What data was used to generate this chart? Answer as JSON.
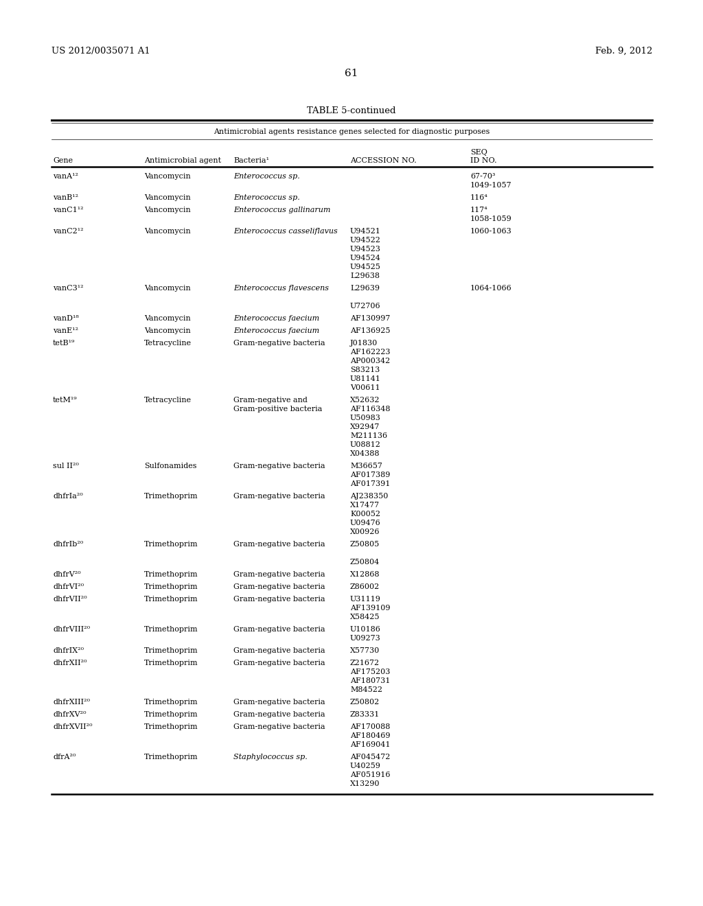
{
  "page_number": "61",
  "patent_number": "US 2012/0035071 A1",
  "patent_date": "Feb. 9, 2012",
  "table_title": "TABLE 5-continued",
  "table_subtitle": "Antimicrobial agents resistance genes selected for diagnostic purposes",
  "rows": [
    {
      "gene": "vanA¹²",
      "antimicrobial": "Vancomycin",
      "bacteria": "Enterococcus sp.",
      "italic": true,
      "accessions": [],
      "seq_id": [
        "67-70³",
        "1049-1057"
      ]
    },
    {
      "gene": "vanB¹²",
      "antimicrobial": "Vancomycin",
      "bacteria": "Enterococcus sp.",
      "italic": true,
      "accessions": [],
      "seq_id": [
        "116⁴"
      ]
    },
    {
      "gene": "vanC1¹²",
      "antimicrobial": "Vancomycin",
      "bacteria": "Enterococcus gallinarum",
      "italic": true,
      "accessions": [],
      "seq_id": [
        "117⁴",
        "1058-1059"
      ]
    },
    {
      "gene": "vanC2¹²",
      "antimicrobial": "Vancomycin",
      "bacteria": "Enterococcus casseliflavus",
      "italic": true,
      "accessions": [
        "U94521",
        "U94522",
        "U94523",
        "U94524",
        "U94525",
        "L29638"
      ],
      "seq_id": [
        "1060-1063"
      ]
    },
    {
      "gene": "vanC3¹²",
      "antimicrobial": "Vancomycin",
      "bacteria": "Enterococcus flavescens",
      "italic": true,
      "accessions": [
        "L29639",
        "",
        "U72706"
      ],
      "seq_id": [
        "1064-1066"
      ]
    },
    {
      "gene": "vanD¹⁸",
      "antimicrobial": "Vancomycin",
      "bacteria": "Enterococcus faecium",
      "italic": true,
      "accessions": [
        "AF130997"
      ],
      "seq_id": []
    },
    {
      "gene": "vanE¹²",
      "antimicrobial": "Vancomycin",
      "bacteria": "Enterococcus faecium",
      "italic": true,
      "accessions": [
        "AF136925"
      ],
      "seq_id": []
    },
    {
      "gene": "tetB¹⁹",
      "antimicrobial": "Tetracycline",
      "bacteria": "Gram-negative bacteria",
      "italic": false,
      "accessions": [
        "J01830",
        "AF162223",
        "AP000342",
        "S83213",
        "U81141",
        "V00611"
      ],
      "seq_id": []
    },
    {
      "gene": "tetM¹⁹",
      "antimicrobial": "Tetracycline",
      "bacteria": "Gram-negative and",
      "bacteria2": "Gram-positive bacteria",
      "italic": false,
      "accessions": [
        "X52632",
        "AF116348",
        "U50983",
        "X92947",
        "M211136",
        "U08812",
        "X04388"
      ],
      "seq_id": []
    },
    {
      "gene": "sul II²⁰",
      "antimicrobial": "Sulfonamides",
      "bacteria": "Gram-negative bacteria",
      "italic": false,
      "accessions": [
        "M36657",
        "AF017389",
        "AF017391"
      ],
      "seq_id": []
    },
    {
      "gene": "dhfrIa²⁰",
      "antimicrobial": "Trimethoprim",
      "bacteria": "Gram-negative bacteria",
      "italic": false,
      "accessions": [
        "AJ238350",
        "X17477",
        "K00052",
        "U09476",
        "X00926"
      ],
      "seq_id": []
    },
    {
      "gene": "dhfrIb²⁰",
      "antimicrobial": "Trimethoprim",
      "bacteria": "Gram-negative bacteria",
      "italic": false,
      "accessions": [
        "Z50805",
        "",
        "Z50804"
      ],
      "seq_id": []
    },
    {
      "gene": "dhfrV²⁰",
      "antimicrobial": "Trimethoprim",
      "bacteria": "Gram-negative bacteria",
      "italic": false,
      "accessions": [
        "X12868"
      ],
      "seq_id": []
    },
    {
      "gene": "dhfrVI²⁰",
      "antimicrobial": "Trimethoprim",
      "bacteria": "Gram-negative bacteria",
      "italic": false,
      "accessions": [
        "Z86002"
      ],
      "seq_id": []
    },
    {
      "gene": "dhfrVII²⁰",
      "antimicrobial": "Trimethoprim",
      "bacteria": "Gram-negative bacteria",
      "italic": false,
      "accessions": [
        "U31119",
        "AF139109",
        "X58425"
      ],
      "seq_id": []
    },
    {
      "gene": "dhfrVIII²⁰",
      "antimicrobial": "Trimethoprim",
      "bacteria": "Gram-negative bacteria",
      "italic": false,
      "accessions": [
        "U10186",
        "U09273"
      ],
      "seq_id": []
    },
    {
      "gene": "dhfrIX²⁰",
      "antimicrobial": "Trimethoprim",
      "bacteria": "Gram-negative bacteria",
      "italic": false,
      "accessions": [
        "X57730"
      ],
      "seq_id": []
    },
    {
      "gene": "dhfrXII²⁰",
      "antimicrobial": "Trimethoprim",
      "bacteria": "Gram-negative bacteria",
      "italic": false,
      "accessions": [
        "Z21672",
        "AF175203",
        "AF180731",
        "M84522"
      ],
      "seq_id": []
    },
    {
      "gene": "dhfrXIII²⁰",
      "antimicrobial": "Trimethoprim",
      "bacteria": "Gram-negative bacteria",
      "italic": false,
      "accessions": [
        "Z50802"
      ],
      "seq_id": []
    },
    {
      "gene": "dhfrXV²⁰",
      "antimicrobial": "Trimethoprim",
      "bacteria": "Gram-negative bacteria",
      "italic": false,
      "accessions": [
        "Z83331"
      ],
      "seq_id": []
    },
    {
      "gene": "dhfrXVII²⁰",
      "antimicrobial": "Trimethoprim",
      "bacteria": "Gram-negative bacteria",
      "italic": false,
      "accessions": [
        "AF170088",
        "AF180469",
        "AF169041"
      ],
      "seq_id": []
    },
    {
      "gene": "dfrA²⁰",
      "antimicrobial": "Trimethoprim",
      "bacteria": "Staphylococcus sp.",
      "italic": true,
      "accessions": [
        "AF045472",
        "U40259",
        "AF051916",
        "X13290"
      ],
      "seq_id": []
    }
  ]
}
